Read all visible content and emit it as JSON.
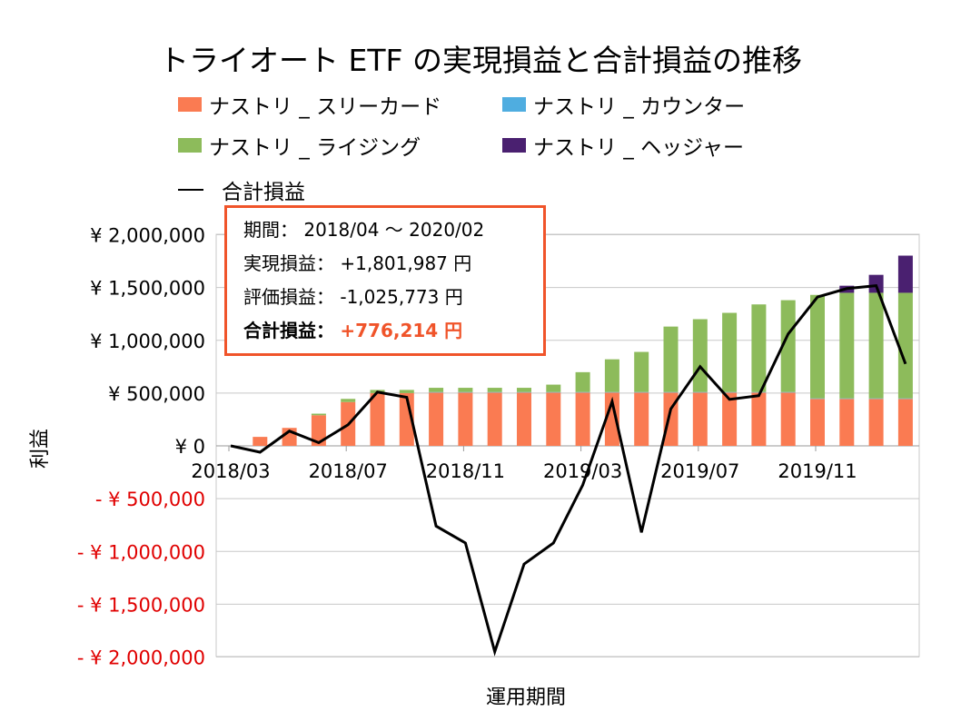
{
  "chart_data": {
    "type": "bar",
    "title": "トライオート ETF の実現損益と合計損益の推移",
    "xlabel": "運用期間",
    "ylabel": "利益",
    "ylim": [
      -2000000,
      2000000
    ],
    "yticks": [
      2000000,
      1500000,
      1000000,
      500000,
      0,
      -500000,
      -1000000,
      -1500000,
      -2000000
    ],
    "ytick_labels": [
      "¥ 2,000,000",
      "¥ 1,500,000",
      "¥ 1,000,000",
      "¥ 500,000",
      "¥ 0",
      "- ¥ 500,000",
      "- ¥ 1,000,000",
      "- ¥ 1,500,000",
      "- ¥ 2,000,000"
    ],
    "xtick_labels": [
      "2018/03",
      "2018/07",
      "2018/11",
      "2019/03",
      "2019/07",
      "2019/11"
    ],
    "months": [
      "2018/03",
      "2018/04",
      "2018/05",
      "2018/06",
      "2018/07",
      "2018/08",
      "2018/09",
      "2018/10",
      "2018/11",
      "2018/12",
      "2019/01",
      "2019/02",
      "2019/03",
      "2019/04",
      "2019/05",
      "2019/06",
      "2019/07",
      "2019/08",
      "2019/09",
      "2019/10",
      "2019/11",
      "2019/12",
      "2020/01",
      "2020/02"
    ],
    "series": [
      {
        "name": "ナストリ _ スリーカード",
        "color": "#FA7B52",
        "values": [
          0,
          85000,
          170000,
          290000,
          415000,
          500000,
          500000,
          505000,
          505000,
          505000,
          505000,
          505000,
          505000,
          505000,
          505000,
          505000,
          505000,
          505000,
          505000,
          505000,
          445000,
          445000,
          445000,
          445000
        ]
      },
      {
        "name": "ナストリ _ カウンター",
        "color": "#4FADE0",
        "values": [
          0,
          0,
          0,
          0,
          0,
          0,
          0,
          5000,
          5000,
          5000,
          5000,
          5000,
          5000,
          5000,
          5000,
          5000,
          5000,
          5000,
          5000,
          5000,
          5000,
          5000,
          5000,
          5000
        ]
      },
      {
        "name": "ナストリ _ ライジング",
        "color": "#8DBB5B",
        "values": [
          0,
          0,
          0,
          15000,
          30000,
          30000,
          30000,
          40000,
          40000,
          40000,
          40000,
          70000,
          188000,
          310000,
          380000,
          620000,
          690000,
          750000,
          830000,
          870000,
          980000,
          1000000,
          1000000,
          1000000
        ]
      },
      {
        "name": "ナストリ _ ヘッジャー",
        "color": "#4A2070",
        "values": [
          0,
          0,
          0,
          0,
          0,
          0,
          0,
          0,
          0,
          0,
          0,
          0,
          0,
          0,
          0,
          0,
          0,
          0,
          0,
          0,
          0,
          67000,
          170000,
          352000
        ]
      }
    ],
    "line": {
      "name": "合計損益",
      "color": "#000000",
      "values": [
        0,
        -60000,
        140000,
        30000,
        200000,
        510000,
        460000,
        -760000,
        -920000,
        -1950000,
        -1120000,
        -920000,
        -370000,
        420000,
        -820000,
        350000,
        750000,
        440000,
        475000,
        1060000,
        1410000,
        1490000,
        1517000,
        776214
      ]
    },
    "tooltip": {
      "period_label": "期間：",
      "period_value": "2018/04 ～ 2020/02",
      "realized_label": "実現損益：",
      "realized_value": "+1,801,987 円",
      "unrealized_label": "評価損益：",
      "unrealized_value": "-1,025,773 円",
      "total_label": "合計損益：",
      "total_value": "+776,214 円"
    },
    "negative_tick_color": "#E00000"
  }
}
